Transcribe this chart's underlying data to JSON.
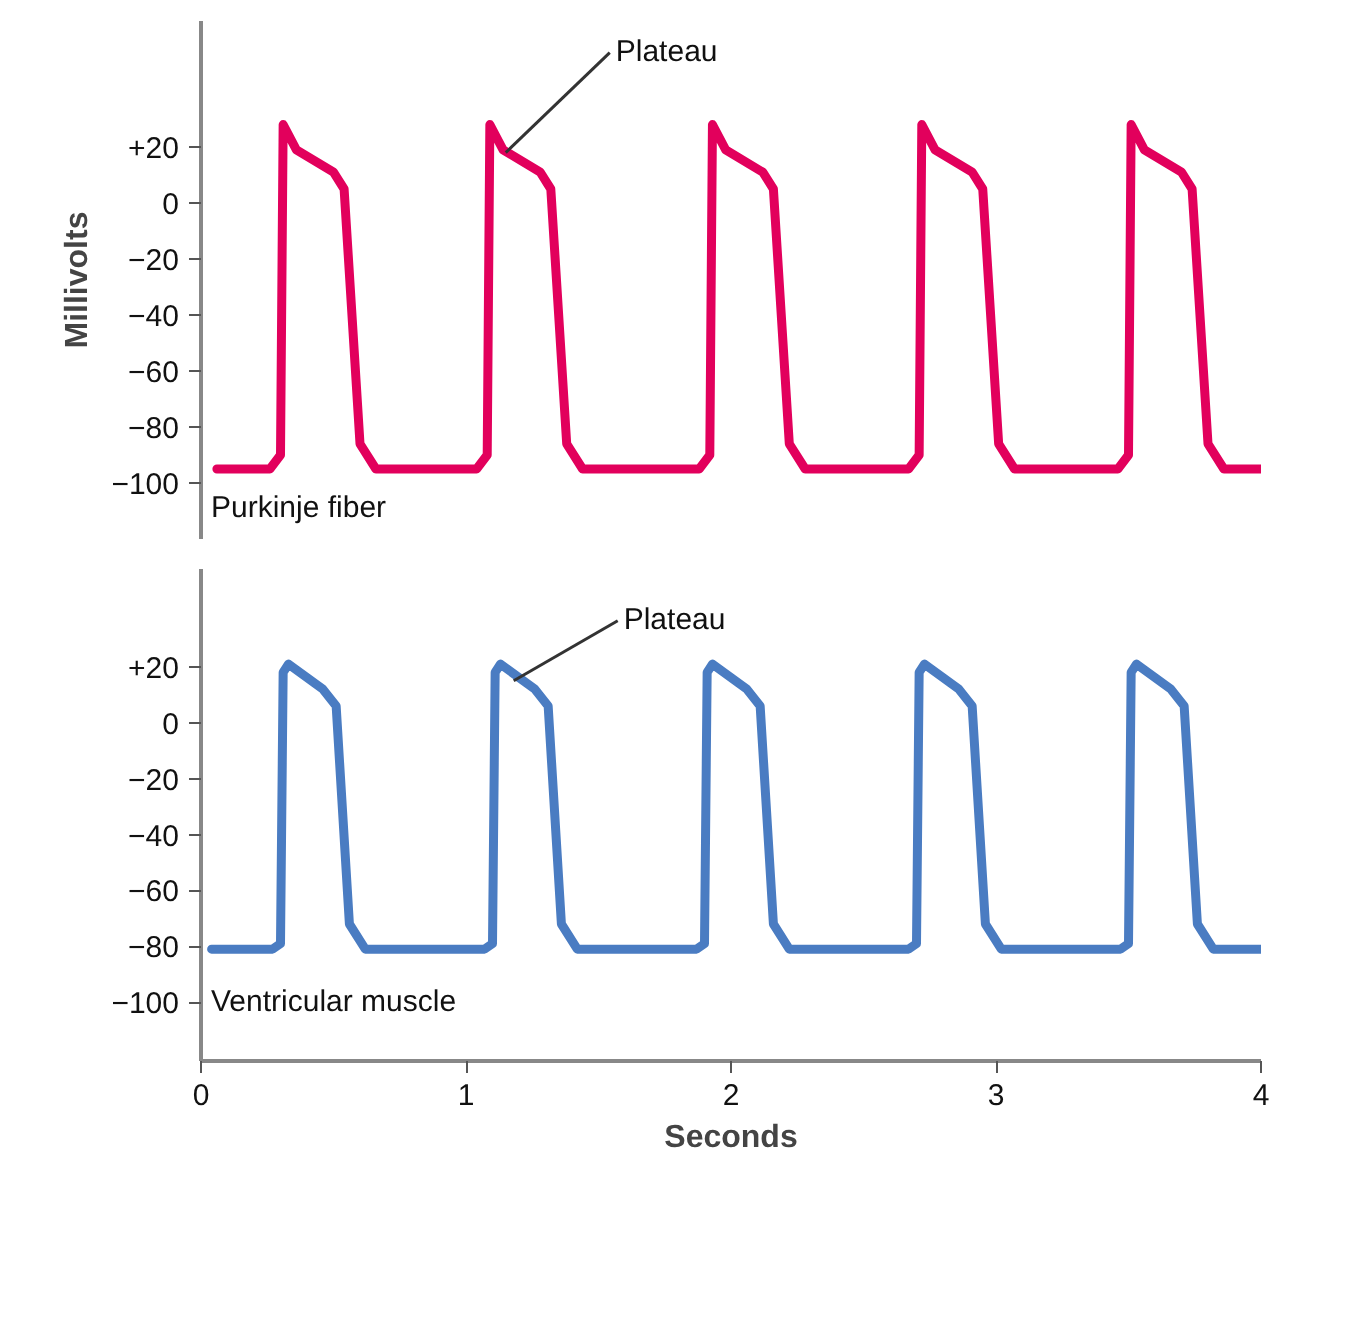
{
  "chart_data": [
    {
      "type": "line",
      "ylabel": "Millivolts",
      "tick_labels": "y",
      "legend": false,
      "grid": false,
      "marker": "none",
      "line_style": "solid",
      "xlim": [
        0,
        4
      ],
      "ylim": [
        -120,
        65
      ],
      "yticks": [
        {
          "value": 20,
          "label": "+20"
        },
        0,
        {
          "value": -20,
          "label": "−20"
        },
        {
          "value": -40,
          "label": "−40"
        },
        {
          "value": -60,
          "label": "−60"
        },
        {
          "value": -80,
          "label": "−80"
        },
        {
          "value": -100,
          "label": "−100"
        }
      ],
      "annotations": [
        {
          "text": "Plateau",
          "x": 1.15,
          "y": 18
        }
      ],
      "series": [
        {
          "name": "Purkinje fiber",
          "color": "#e2005c",
          "x": [
            0.06,
            0.26,
            0.3,
            0.31,
            0.36,
            0.5,
            0.54,
            0.6,
            0.66,
            1.04,
            1.08,
            1.09,
            1.14,
            1.28,
            1.32,
            1.38,
            1.44,
            1.88,
            1.92,
            1.93,
            1.98,
            2.12,
            2.16,
            2.22,
            2.28,
            2.67,
            2.71,
            2.72,
            2.77,
            2.91,
            2.95,
            3.01,
            3.07,
            3.46,
            3.5,
            3.51,
            3.56,
            3.7,
            3.74,
            3.8,
            3.86,
            4.0
          ],
          "values": [
            -95,
            -95,
            -90,
            28,
            19,
            11,
            5,
            -86,
            -95,
            -95,
            -90,
            28,
            19,
            11,
            5,
            -86,
            -95,
            -95,
            -90,
            28,
            19,
            11,
            5,
            -86,
            -95,
            -95,
            -90,
            28,
            19,
            11,
            5,
            -86,
            -95,
            -95,
            -90,
            28,
            19,
            11,
            5,
            -86,
            -95,
            -95
          ]
        }
      ]
    },
    {
      "type": "line",
      "xlabel": "Seconds",
      "legend": false,
      "grid": false,
      "marker": "none",
      "line_style": "solid",
      "xlim": [
        0,
        4
      ],
      "ylim": [
        -121,
        55
      ],
      "xticks": [
        0,
        1,
        2,
        3,
        4
      ],
      "yticks": [
        {
          "value": 20,
          "label": "+20"
        },
        0,
        {
          "value": -20,
          "label": "−20"
        },
        {
          "value": -40,
          "label": "−40"
        },
        {
          "value": -60,
          "label": "−60"
        },
        {
          "value": -80,
          "label": "−80"
        },
        {
          "value": -100,
          "label": "−100"
        }
      ],
      "annotations": [
        {
          "text": "Plateau",
          "x": 1.18,
          "y": 15
        }
      ],
      "series": [
        {
          "name": "Ventricular muscle",
          "color": "#4a7cc2",
          "x": [
            0.04,
            0.27,
            0.3,
            0.31,
            0.33,
            0.46,
            0.51,
            0.56,
            0.62,
            1.07,
            1.1,
            1.11,
            1.13,
            1.26,
            1.31,
            1.36,
            1.42,
            1.87,
            1.9,
            1.91,
            1.93,
            2.06,
            2.11,
            2.16,
            2.22,
            2.67,
            2.7,
            2.71,
            2.73,
            2.86,
            2.91,
            2.96,
            3.02,
            3.47,
            3.5,
            3.51,
            3.53,
            3.66,
            3.71,
            3.76,
            3.82,
            4.0
          ],
          "values": [
            -81,
            -81,
            -79,
            18,
            21,
            12,
            6,
            -72,
            -81,
            -81,
            -79,
            18,
            21,
            12,
            6,
            -72,
            -81,
            -81,
            -79,
            18,
            21,
            12,
            6,
            -72,
            -81,
            -81,
            -79,
            18,
            21,
            12,
            6,
            -72,
            -81,
            -81,
            -79,
            18,
            21,
            12,
            6,
            -72,
            -81,
            -81
          ]
        }
      ]
    }
  ]
}
